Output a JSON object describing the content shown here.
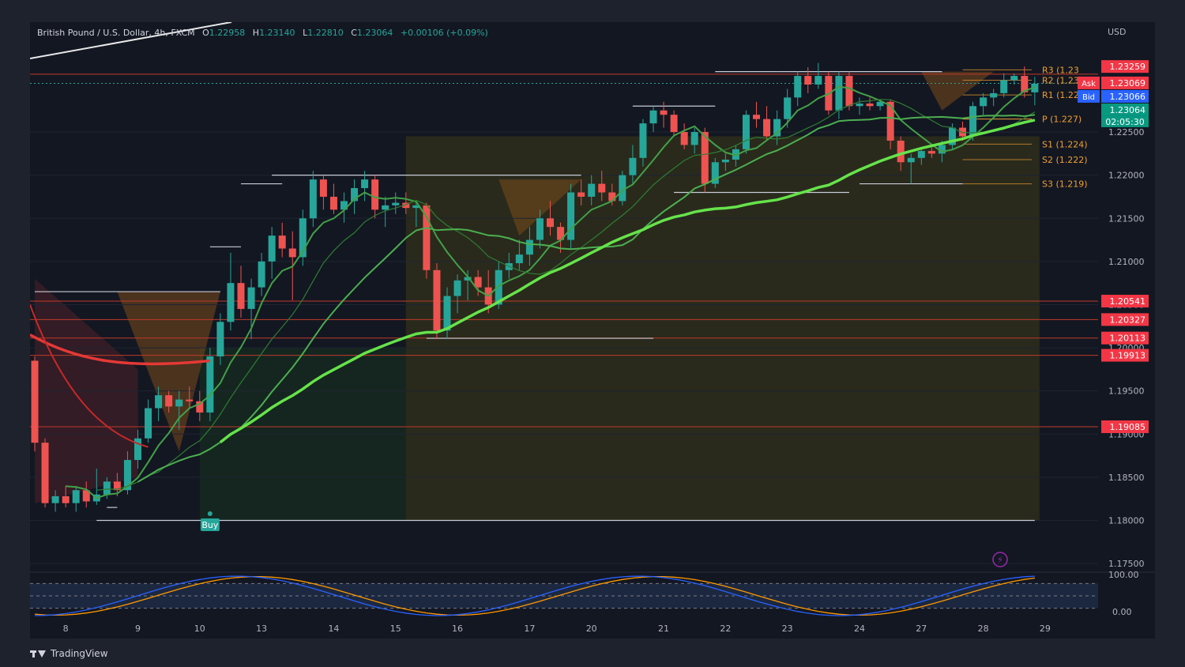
{
  "header": {
    "symbol": "British Pound / U.S. Dollar",
    "interval": "4h",
    "exchange": "FXCM",
    "open_label": "O",
    "open": "1.22958",
    "high_label": "H",
    "high": "1.23140",
    "low_label": "L",
    "low": "1.22810",
    "close_label": "C",
    "close": "1.23064",
    "change": "+0.00106 (+0.09%)"
  },
  "currency": "USD",
  "buy_label": "Buy",
  "brand": "TradingView",
  "colors": {
    "bull": "#26a69a",
    "bear": "#ef5350",
    "ma_green": "#4caf50",
    "ma_red": "#e53935",
    "pivot": "#f0a030",
    "price_line": "#ef5350",
    "background": "#131722"
  },
  "chart_data": {
    "type": "candlestick",
    "ylim": [
      1.174,
      1.237
    ],
    "price_ticks": [
      "1.22500",
      "1.22000",
      "1.21500",
      "1.21000",
      "1.20500",
      "1.20000",
      "1.19500",
      "1.19000",
      "1.18500",
      "1.18000",
      "1.17500"
    ],
    "x_ticks": [
      "8",
      "9",
      "10",
      "13",
      "14",
      "15",
      "16",
      "17",
      "20",
      "21",
      "22",
      "23",
      "24",
      "27",
      "28",
      "29"
    ],
    "price_labels": [
      {
        "value": "1.23259",
        "price": 1.23259,
        "color": "#f23645",
        "prefix": ""
      },
      {
        "value": "1.23069",
        "price": 1.23069,
        "color": "#f23645",
        "prefix": "Ask"
      },
      {
        "value": "1.23066",
        "price": 1.23066,
        "color": "#2962ff",
        "prefix": "Bid"
      },
      {
        "value": "1.23064",
        "price": 1.23064,
        "color": "#089981",
        "prefix": ""
      },
      {
        "value": "1.20541",
        "price": 1.20541,
        "color": "#f23645",
        "prefix": ""
      },
      {
        "value": "1.20327",
        "price": 1.20327,
        "color": "#f23645",
        "prefix": ""
      },
      {
        "value": "1.20113",
        "price": 1.20113,
        "color": "#f23645",
        "prefix": ""
      },
      {
        "value": "1.19913",
        "price": 1.19913,
        "color": "#f23645",
        "prefix": ""
      },
      {
        "value": "1.19085",
        "price": 1.19085,
        "color": "#f23645",
        "prefix": ""
      }
    ],
    "countdown": "02:05:30",
    "pivots": [
      {
        "label": "R3 (1.23",
        "price": 1.2322
      },
      {
        "label": "R2 (1.231)",
        "price": 1.231
      },
      {
        "label": "R1 (1.229)",
        "price": 1.2293
      },
      {
        "label": "P (1.227)",
        "price": 1.2265
      },
      {
        "label": "S1 (1.224)",
        "price": 1.2236
      },
      {
        "label": "S2 (1.222)",
        "price": 1.2218
      },
      {
        "label": "S3 (1.219)",
        "price": 1.219
      }
    ],
    "candles": [
      [
        1.1985,
        1.199,
        1.188,
        1.189
      ],
      [
        1.189,
        1.1895,
        1.1815,
        1.182
      ],
      [
        1.182,
        1.1835,
        1.181,
        1.1828
      ],
      [
        1.1828,
        1.184,
        1.1815,
        1.182
      ],
      [
        1.182,
        1.184,
        1.181,
        1.1835
      ],
      [
        1.1835,
        1.1845,
        1.1815,
        1.1822
      ],
      [
        1.1822,
        1.186,
        1.1818,
        1.183
      ],
      [
        1.183,
        1.185,
        1.1825,
        1.1845
      ],
      [
        1.1845,
        1.1855,
        1.1828,
        1.1835
      ],
      [
        1.1835,
        1.188,
        1.183,
        1.187
      ],
      [
        1.187,
        1.1905,
        1.186,
        1.1895
      ],
      [
        1.1895,
        1.194,
        1.189,
        1.193
      ],
      [
        1.193,
        1.1955,
        1.1915,
        1.1945
      ],
      [
        1.1945,
        1.195,
        1.1925,
        1.1932
      ],
      [
        1.1932,
        1.195,
        1.1905,
        1.194
      ],
      [
        1.194,
        1.1955,
        1.193,
        1.1938
      ],
      [
        1.1938,
        1.195,
        1.1915,
        1.1925
      ],
      [
        1.1925,
        1.2,
        1.1915,
        1.199
      ],
      [
        1.199,
        1.204,
        1.198,
        1.203
      ],
      [
        1.203,
        1.211,
        1.202,
        1.2075
      ],
      [
        1.2075,
        1.2095,
        1.2035,
        1.2045
      ],
      [
        1.2045,
        1.208,
        1.201,
        1.207
      ],
      [
        1.207,
        1.211,
        1.206,
        1.21
      ],
      [
        1.21,
        1.214,
        1.208,
        1.213
      ],
      [
        1.213,
        1.2145,
        1.2105,
        1.2115
      ],
      [
        1.2115,
        1.2135,
        1.2055,
        1.2105
      ],
      [
        1.2105,
        1.216,
        1.2095,
        1.215
      ],
      [
        1.215,
        1.2205,
        1.214,
        1.2195
      ],
      [
        1.2195,
        1.22,
        1.216,
        1.2175
      ],
      [
        1.2175,
        1.219,
        1.2155,
        1.216
      ],
      [
        1.216,
        1.218,
        1.2145,
        1.217
      ],
      [
        1.217,
        1.2195,
        1.2155,
        1.2185
      ],
      [
        1.2185,
        1.2205,
        1.217,
        1.2195
      ],
      [
        1.2195,
        1.22,
        1.215,
        1.216
      ],
      [
        1.216,
        1.2175,
        1.214,
        1.2165
      ],
      [
        1.2165,
        1.218,
        1.2155,
        1.2168
      ],
      [
        1.2168,
        1.218,
        1.2155,
        1.2162
      ],
      [
        1.2162,
        1.217,
        1.214,
        1.2165
      ],
      [
        1.2165,
        1.2168,
        1.208,
        1.209
      ],
      [
        1.209,
        1.2098,
        1.201,
        1.202
      ],
      [
        1.202,
        1.207,
        1.201,
        1.206
      ],
      [
        1.206,
        1.2085,
        1.204,
        1.2078
      ],
      [
        1.2078,
        1.209,
        1.2055,
        1.2082
      ],
      [
        1.2082,
        1.209,
        1.206,
        1.207
      ],
      [
        1.207,
        1.209,
        1.204,
        1.205
      ],
      [
        1.205,
        1.21,
        1.2045,
        1.209
      ],
      [
        1.209,
        1.211,
        1.208,
        1.2098
      ],
      [
        1.2098,
        1.2125,
        1.209,
        1.2108
      ],
      [
        1.2108,
        1.214,
        1.2095,
        1.2125
      ],
      [
        1.2125,
        1.216,
        1.2115,
        1.215
      ],
      [
        1.215,
        1.217,
        1.213,
        1.214
      ],
      [
        1.214,
        1.2145,
        1.211,
        1.2125
      ],
      [
        1.2125,
        1.219,
        1.2115,
        1.218
      ],
      [
        1.218,
        1.2195,
        1.2165,
        1.2175
      ],
      [
        1.2175,
        1.22,
        1.2165,
        1.219
      ],
      [
        1.219,
        1.2205,
        1.217,
        1.218
      ],
      [
        1.218,
        1.219,
        1.2165,
        1.217
      ],
      [
        1.217,
        1.2205,
        1.2165,
        1.22
      ],
      [
        1.22,
        1.2235,
        1.219,
        1.222
      ],
      [
        1.222,
        1.2265,
        1.221,
        1.226
      ],
      [
        1.226,
        1.228,
        1.225,
        1.2275
      ],
      [
        1.2275,
        1.2285,
        1.2255,
        1.227
      ],
      [
        1.227,
        1.2275,
        1.2245,
        1.225
      ],
      [
        1.225,
        1.226,
        1.223,
        1.2235
      ],
      [
        1.2235,
        1.2255,
        1.2225,
        1.225
      ],
      [
        1.225,
        1.2255,
        1.218,
        1.219
      ],
      [
        1.219,
        1.222,
        1.2185,
        1.2215
      ],
      [
        1.2215,
        1.2225,
        1.2205,
        1.2218
      ],
      [
        1.2218,
        1.2235,
        1.221,
        1.223
      ],
      [
        1.223,
        1.2275,
        1.2225,
        1.227
      ],
      [
        1.227,
        1.2285,
        1.2255,
        1.2265
      ],
      [
        1.2265,
        1.228,
        1.224,
        1.2245
      ],
      [
        1.2245,
        1.2275,
        1.2235,
        1.2265
      ],
      [
        1.2265,
        1.23,
        1.2255,
        1.229
      ],
      [
        1.229,
        1.232,
        1.228,
        1.2315
      ],
      [
        1.2315,
        1.2325,
        1.2295,
        1.2305
      ],
      [
        1.2305,
        1.233,
        1.23,
        1.2315
      ],
      [
        1.2315,
        1.232,
        1.227,
        1.2275
      ],
      [
        1.2275,
        1.232,
        1.2265,
        1.2315
      ],
      [
        1.2315,
        1.232,
        1.2275,
        1.228
      ],
      [
        1.228,
        1.229,
        1.227,
        1.2283
      ],
      [
        1.2283,
        1.229,
        1.2275,
        1.228
      ],
      [
        1.228,
        1.2288,
        1.2275,
        1.2285
      ],
      [
        1.2285,
        1.2288,
        1.223,
        1.224
      ],
      [
        1.224,
        1.2245,
        1.2205,
        1.2215
      ],
      [
        1.2215,
        1.2225,
        1.219,
        1.222
      ],
      [
        1.222,
        1.2232,
        1.2212,
        1.2228
      ],
      [
        1.2228,
        1.2235,
        1.222,
        1.2225
      ],
      [
        1.2225,
        1.224,
        1.2215,
        1.2235
      ],
      [
        1.2235,
        1.226,
        1.223,
        1.2255
      ],
      [
        1.2255,
        1.2262,
        1.224,
        1.2245
      ],
      [
        1.2245,
        1.2285,
        1.224,
        1.228
      ],
      [
        1.228,
        1.2295,
        1.227,
        1.229
      ],
      [
        1.229,
        1.23,
        1.228,
        1.2295
      ],
      [
        1.2295,
        1.2318,
        1.229,
        1.231
      ],
      [
        1.231,
        1.2318,
        1.2305,
        1.2315
      ],
      [
        1.2315,
        1.2326,
        1.229,
        1.2296
      ],
      [
        1.2296,
        1.2314,
        1.2281,
        1.2306
      ]
    ],
    "oscillator": {
      "ticks": [
        "100.00",
        "0.00"
      ],
      "ylim": [
        0,
        100
      ]
    }
  }
}
